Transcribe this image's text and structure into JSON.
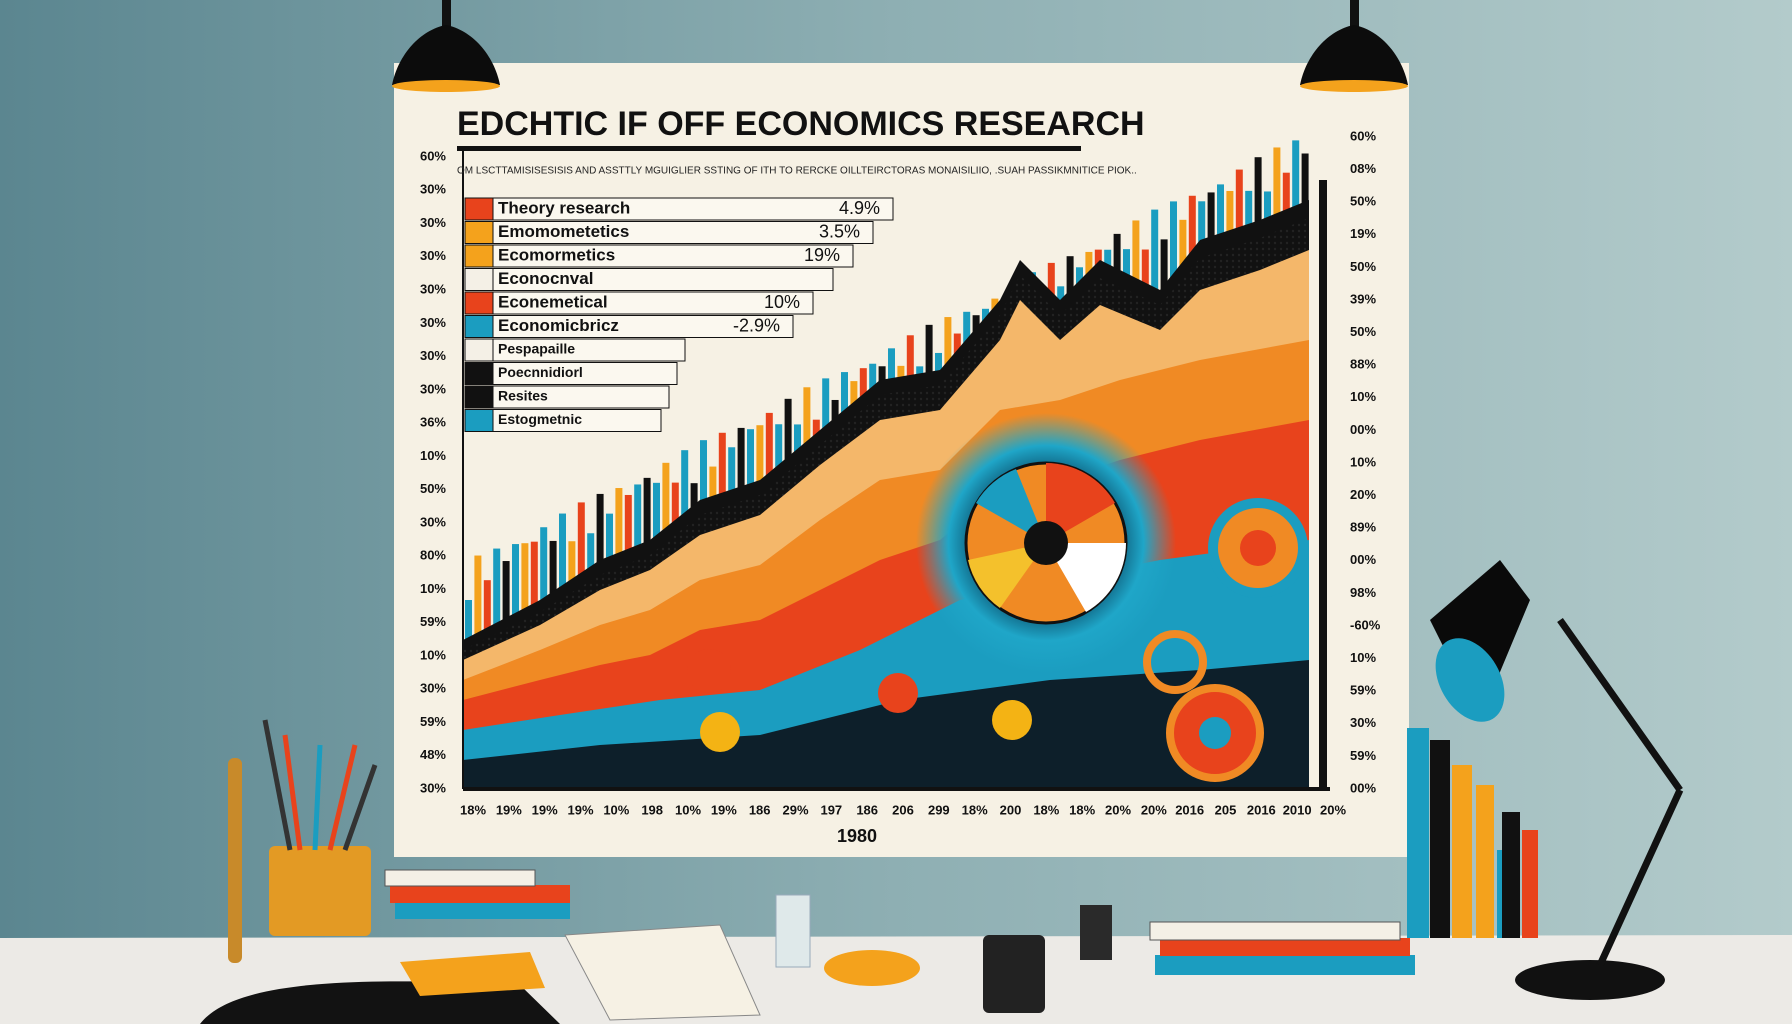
{
  "header": {
    "title": "EDCHTIC IF OFF ECONOMICS RESEARCH",
    "subtitle": "OM LSCTTAMISISESISIS AND ASSTTLY MGUIGLIER SSTING OF ITH TO RERCKE OILLTEIRCTORAS MONAISILIIO, .SUAH PASSIKMNITICE PIOK.."
  },
  "legend": [
    {
      "label": "Theory research",
      "value": "4.9%"
    },
    {
      "label": "Emomometetics",
      "value": "3.5%"
    },
    {
      "label": "Ecomormetics",
      "value": "19%"
    },
    {
      "label": "Econocnval"
    },
    {
      "label": "Econemetical",
      "value": "10%"
    },
    {
      "label": "Economicbricz",
      "value": "-2.9%"
    },
    {
      "label": "Pespapaille"
    },
    {
      "label": "Poecnnidiorl"
    },
    {
      "label": "Resites"
    },
    {
      "label": "Estogmetnic"
    }
  ],
  "left_axis": [
    "60%",
    "30%",
    "30%",
    "30%",
    "30%",
    "30%",
    "30%",
    "30%",
    "36%",
    "10%",
    "50%",
    "30%",
    "80%",
    "10%",
    "59%",
    "10%",
    "30%",
    "59%",
    "48%",
    "30%"
  ],
  "right_axis": [
    "60%",
    "08%",
    "50%",
    "19%",
    "50%",
    "39%",
    "50%",
    "88%",
    "10%",
    "00%",
    "10%",
    "20%",
    "89%",
    "00%",
    "98%",
    "-60%",
    "10%",
    "59%",
    "30%",
    "59%",
    "00%"
  ],
  "bottom_axis": [
    "18%",
    "19%",
    "19%",
    "19%",
    "10%",
    "198",
    "10%",
    "19%",
    "186",
    "29%",
    "197",
    "186",
    "206",
    "299",
    "18%",
    "200",
    "18%",
    "18%",
    "20%",
    "20%",
    "2016",
    "205",
    "2016",
    "2010",
    "20%"
  ],
  "bottom_caption": "1980"
}
